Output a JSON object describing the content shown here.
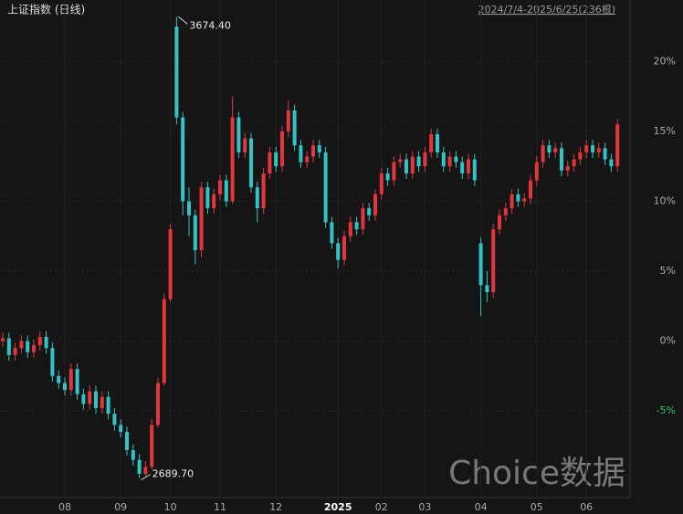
{
  "chart_data": {
    "type": "candlestick",
    "title": "上证指数 (日线)",
    "subtitle": "2024/7/4-2025/6/25(236根)",
    "watermark": "Choice数据",
    "up_color": "#e2363f",
    "down_color": "#33c3c6",
    "negative_label_color": "#2fc46b",
    "ylim": [
      -11,
      24.4
    ],
    "yticks": [
      {
        "value": -5,
        "label": "-5%"
      },
      {
        "value": 0,
        "label": "0%"
      },
      {
        "value": 5,
        "label": "5%"
      },
      {
        "value": 10,
        "label": "10%"
      },
      {
        "value": 15,
        "label": "15%"
      },
      {
        "value": 20,
        "label": "20%"
      }
    ],
    "xticks": [
      {
        "value": 10,
        "label": "08"
      },
      {
        "value": 19,
        "label": "09"
      },
      {
        "value": 27,
        "label": "10"
      },
      {
        "value": 35,
        "label": "11"
      },
      {
        "value": 44,
        "label": "12"
      },
      {
        "value": 54,
        "label": "2025"
      },
      {
        "value": 61,
        "label": "02"
      },
      {
        "value": 68,
        "label": "03"
      },
      {
        "value": 77,
        "label": "04"
      },
      {
        "value": 86,
        "label": "05"
      },
      {
        "value": 94,
        "label": "06"
      }
    ],
    "max_label": "3674.40",
    "min_label": "2689.70",
    "open": [
      0.0,
      0.2,
      -1.0,
      -0.5,
      0.0,
      -0.8,
      -0.3,
      0.3,
      -0.5,
      -2.5,
      -3.0,
      -3.5,
      -2.0,
      -3.8,
      -4.5,
      -3.6,
      -4.8,
      -4.0,
      -5.2,
      -6.0,
      -6.5,
      -7.8,
      -8.5,
      -9.5,
      -9.0,
      -6.0,
      -3.0,
      3.0,
      22.5,
      16.0,
      10.0,
      9.0,
      6.5,
      11.0,
      9.5,
      10.5,
      11.5,
      10.0,
      16.0,
      13.5,
      14.5,
      11.0,
      9.5,
      12.0,
      13.5,
      12.5,
      15.0,
      16.5,
      14.0,
      12.8,
      13.2,
      14.0,
      13.5,
      8.5,
      7.0,
      5.8,
      7.5,
      8.5,
      8.0,
      9.5,
      9.0,
      10.5,
      12.0,
      11.5,
      12.8,
      13.0,
      12.0,
      13.2,
      12.5,
      13.5,
      14.8,
      13.5,
      12.5,
      13.2,
      12.8,
      12.0,
      13.0,
      7.0,
      4.0,
      3.5,
      8.0,
      9.0,
      9.5,
      10.5,
      10.0,
      10.2,
      11.5,
      12.8,
      14.0,
      13.5,
      13.8,
      12.2,
      12.5,
      13.0,
      13.5,
      14.0,
      13.5,
      13.8,
      13.0,
      12.5
    ],
    "high": [
      0.6,
      0.6,
      -0.1,
      0.4,
      0.4,
      0.1,
      0.7,
      0.7,
      -0.1,
      -2.1,
      -2.6,
      -1.6,
      -1.6,
      -3.4,
      -3.2,
      -3.2,
      -3.6,
      -3.6,
      -4.8,
      -5.6,
      -6.1,
      -7.4,
      -8.1,
      -8.6,
      -5.6,
      -2.6,
      3.4,
      8.4,
      23.2,
      16.4,
      11.0,
      9.4,
      11.4,
      11.4,
      10.9,
      11.9,
      11.9,
      17.5,
      16.4,
      14.9,
      14.9,
      11.4,
      12.4,
      13.9,
      13.9,
      15.4,
      17.2,
      16.9,
      14.4,
      13.6,
      14.4,
      14.4,
      13.9,
      8.9,
      7.4,
      7.9,
      8.9,
      8.9,
      9.9,
      9.9,
      10.9,
      12.4,
      12.4,
      13.2,
      13.4,
      13.4,
      13.6,
      13.6,
      13.9,
      15.2,
      15.2,
      13.9,
      13.6,
      13.6,
      13.2,
      13.4,
      13.4,
      7.4,
      5.0,
      8.4,
      9.4,
      9.9,
      10.9,
      10.9,
      10.6,
      11.9,
      13.2,
      14.4,
      14.4,
      14.2,
      14.2,
      12.9,
      13.4,
      13.9,
      14.4,
      14.4,
      14.2,
      14.2,
      13.4,
      15.9
    ],
    "low": [
      -0.4,
      -1.4,
      -1.4,
      -0.9,
      -1.2,
      -1.2,
      -0.7,
      -0.9,
      -2.9,
      -3.4,
      -3.9,
      -3.9,
      -4.2,
      -4.9,
      -4.9,
      -5.2,
      -5.2,
      -5.6,
      -6.4,
      -6.9,
      -8.2,
      -8.9,
      -9.8,
      -9.7,
      -9.2,
      -6.2,
      -3.2,
      2.8,
      15.5,
      9.0,
      7.5,
      5.5,
      6.0,
      9.1,
      9.1,
      10.1,
      9.6,
      9.8,
      13.1,
      13.1,
      10.6,
      8.5,
      9.1,
      11.6,
      12.1,
      12.1,
      14.6,
      13.6,
      12.4,
      12.4,
      12.8,
      13.1,
      8.1,
      6.6,
      5.2,
      5.4,
      7.1,
      7.6,
      7.6,
      8.6,
      8.6,
      10.1,
      11.1,
      11.1,
      12.4,
      11.6,
      11.6,
      12.1,
      12.1,
      13.1,
      13.1,
      12.1,
      12.1,
      12.4,
      11.6,
      11.6,
      11.1,
      1.8,
      2.8,
      3.1,
      7.6,
      8.6,
      9.1,
      9.6,
      9.6,
      9.8,
      11.1,
      12.4,
      13.1,
      13.1,
      11.8,
      11.8,
      12.1,
      12.6,
      13.1,
      13.1,
      13.1,
      12.6,
      12.1,
      12.1
    ],
    "close": [
      0.2,
      -1.0,
      -0.5,
      0.0,
      -0.8,
      -0.3,
      0.3,
      -0.5,
      -2.5,
      -3.0,
      -3.5,
      -2.0,
      -3.8,
      -4.5,
      -3.6,
      -4.8,
      -4.0,
      -5.2,
      -6.0,
      -6.5,
      -7.8,
      -8.5,
      -9.5,
      -9.0,
      -6.0,
      -3.0,
      3.0,
      8.0,
      16.0,
      10.0,
      9.0,
      6.5,
      11.0,
      9.5,
      10.5,
      11.5,
      10.0,
      16.0,
      13.5,
      14.5,
      11.0,
      9.5,
      12.0,
      13.5,
      12.5,
      15.0,
      16.5,
      14.0,
      12.8,
      13.2,
      14.0,
      13.5,
      8.5,
      7.0,
      5.8,
      7.5,
      8.5,
      8.0,
      9.5,
      9.0,
      10.5,
      12.0,
      11.5,
      12.8,
      13.0,
      12.0,
      13.2,
      12.5,
      13.5,
      14.8,
      13.5,
      12.5,
      13.2,
      12.8,
      12.0,
      13.0,
      11.5,
      4.0,
      3.5,
      8.0,
      9.0,
      9.5,
      10.5,
      10.0,
      10.2,
      11.5,
      12.8,
      14.0,
      13.5,
      13.8,
      12.2,
      12.5,
      13.0,
      13.5,
      14.0,
      13.5,
      13.8,
      13.0,
      12.5,
      15.5
    ]
  }
}
